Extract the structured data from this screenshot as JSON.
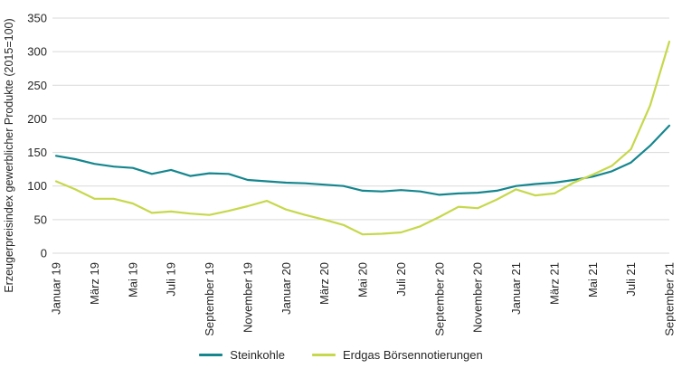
{
  "chart_data": {
    "type": "line",
    "title": "",
    "xlabel": "",
    "ylabel": "Erzeugerpreisindex gewerblicher Produkte (2015=100)",
    "ylim": [
      0,
      350
    ],
    "yticks": [
      0,
      50,
      100,
      150,
      200,
      250,
      300,
      350
    ],
    "grid": "horizontal",
    "legend_position": "bottom",
    "categories": [
      "Januar 19",
      "Februar 19",
      "März 19",
      "April 19",
      "Mai 19",
      "Juni 19",
      "Juli 19",
      "August 19",
      "September 19",
      "Oktober 19",
      "November 19",
      "Dezember 19",
      "Januar 20",
      "Februar 20",
      "März 20",
      "April 20",
      "Mai 20",
      "Juni 20",
      "Juli 20",
      "August 20",
      "September 20",
      "Oktober 20",
      "November 20",
      "Dezember 20",
      "Januar 21",
      "Februar 21",
      "März 21",
      "April 21",
      "Mai 21",
      "Juni 21",
      "Juli 21",
      "August 21",
      "September 21"
    ],
    "x_tick_labels": [
      "Januar 19",
      "März 19",
      "Mai 19",
      "Juli 19",
      "September 19",
      "November 19",
      "Januar 20",
      "März 20",
      "Mai 20",
      "Juli 20",
      "September 20",
      "November 20",
      "Januar 21",
      "März 21",
      "Mai 21",
      "Juli 21",
      "September 21"
    ],
    "series": [
      {
        "name": "Steinkohle",
        "color": "#15868e",
        "values": [
          145,
          140,
          133,
          129,
          127,
          118,
          124,
          115,
          119,
          118,
          109,
          107,
          105,
          104,
          102,
          100,
          93,
          92,
          94,
          92,
          87,
          89,
          90,
          93,
          100,
          103,
          105,
          109,
          114,
          122,
          135,
          160,
          190
        ]
      },
      {
        "name": "Erdgas Börsennotierungen",
        "color": "#c6d84b",
        "values": [
          107,
          95,
          81,
          81,
          74,
          60,
          62,
          59,
          57,
          63,
          70,
          78,
          65,
          57,
          50,
          42,
          28,
          29,
          31,
          40,
          54,
          69,
          67,
          80,
          95,
          86,
          89,
          105,
          117,
          130,
          155,
          220,
          315
        ]
      }
    ]
  }
}
